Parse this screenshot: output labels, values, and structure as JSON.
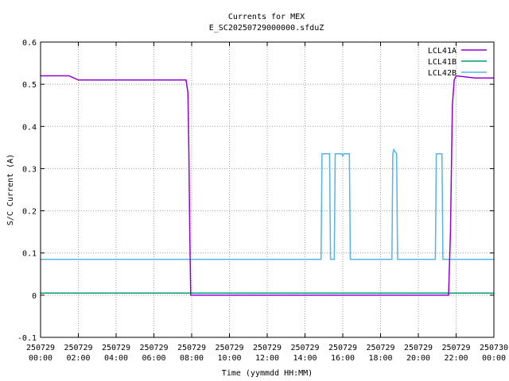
{
  "chart_data": {
    "type": "line",
    "title": "Currents for MEX",
    "subtitle": "E_SC20250729000000.sfduZ",
    "xlabel": "Time (yymmdd HH:MM)",
    "ylabel": "S/C Current (A)",
    "xlim": [
      0,
      24
    ],
    "ylim": [
      -0.1,
      0.6
    ],
    "grid": true,
    "legend_position": "top-right",
    "x_ticks": [
      {
        "x": 0,
        "date": "250729",
        "time": "00:00"
      },
      {
        "x": 2,
        "date": "250729",
        "time": "02:00"
      },
      {
        "x": 4,
        "date": "250729",
        "time": "04:00"
      },
      {
        "x": 6,
        "date": "250729",
        "time": "06:00"
      },
      {
        "x": 8,
        "date": "250729",
        "time": "08:00"
      },
      {
        "x": 10,
        "date": "250729",
        "time": "10:00"
      },
      {
        "x": 12,
        "date": "250729",
        "time": "12:00"
      },
      {
        "x": 14,
        "date": "250729",
        "time": "14:00"
      },
      {
        "x": 16,
        "date": "250729",
        "time": "16:00"
      },
      {
        "x": 18,
        "date": "250729",
        "time": "18:00"
      },
      {
        "x": 20,
        "date": "250729",
        "time": "20:00"
      },
      {
        "x": 22,
        "date": "250729",
        "time": "22:00"
      },
      {
        "x": 24,
        "date": "250730",
        "time": "00:00"
      }
    ],
    "y_ticks": [
      {
        "value": -0.1,
        "label": "-0.1"
      },
      {
        "value": 0,
        "label": "0"
      },
      {
        "value": 0.1,
        "label": "0.1"
      },
      {
        "value": 0.2,
        "label": "0.2"
      },
      {
        "value": 0.3,
        "label": "0.3"
      },
      {
        "value": 0.4,
        "label": "0.4"
      },
      {
        "value": 0.5,
        "label": "0.5"
      },
      {
        "value": 0.6,
        "label": "0.6"
      }
    ],
    "series": [
      {
        "name": "LCL41A",
        "color": "#9400d3",
        "x": [
          0,
          0.5,
          1,
          1.5,
          2,
          3,
          4,
          5,
          6,
          7,
          7.6,
          7.7,
          7.8,
          7.85,
          7.9,
          7.95,
          8,
          10,
          12,
          14,
          16,
          18,
          20,
          21.5,
          21.6,
          21.7,
          21.75,
          21.8,
          21.9,
          22,
          23,
          24
        ],
        "y": [
          0.52,
          0.52,
          0.52,
          0.52,
          0.51,
          0.51,
          0.51,
          0.51,
          0.51,
          0.51,
          0.51,
          0.51,
          0.48,
          0.35,
          0.15,
          0.0,
          0.0,
          0.0,
          0.0,
          0.0,
          0.0,
          0.0,
          0.0,
          0.0,
          0.0,
          0.15,
          0.3,
          0.45,
          0.51,
          0.52,
          0.515,
          0.515
        ]
      },
      {
        "name": "LCL41B",
        "color": "#009e73",
        "x": [
          0,
          2,
          4,
          6,
          8,
          10,
          12,
          14,
          16,
          18,
          20,
          22,
          24
        ],
        "y": [
          0.005,
          0.005,
          0.005,
          0.005,
          0.005,
          0.005,
          0.005,
          0.005,
          0.005,
          0.005,
          0.005,
          0.005,
          0.005
        ]
      },
      {
        "name": "LCL42B",
        "color": "#56b4e9",
        "x": [
          0,
          4,
          8,
          12,
          14.85,
          14.9,
          15.3,
          15.35,
          15.55,
          15.6,
          15.95,
          16.0,
          16.05,
          16.35,
          16.4,
          18.6,
          18.65,
          18.7,
          18.85,
          18.9,
          20.9,
          20.95,
          21.25,
          21.3,
          24
        ],
        "y": [
          0.085,
          0.085,
          0.085,
          0.085,
          0.085,
          0.335,
          0.335,
          0.085,
          0.085,
          0.335,
          0.335,
          0.33,
          0.335,
          0.335,
          0.085,
          0.085,
          0.335,
          0.345,
          0.335,
          0.085,
          0.085,
          0.335,
          0.335,
          0.085,
          0.085
        ]
      }
    ]
  }
}
